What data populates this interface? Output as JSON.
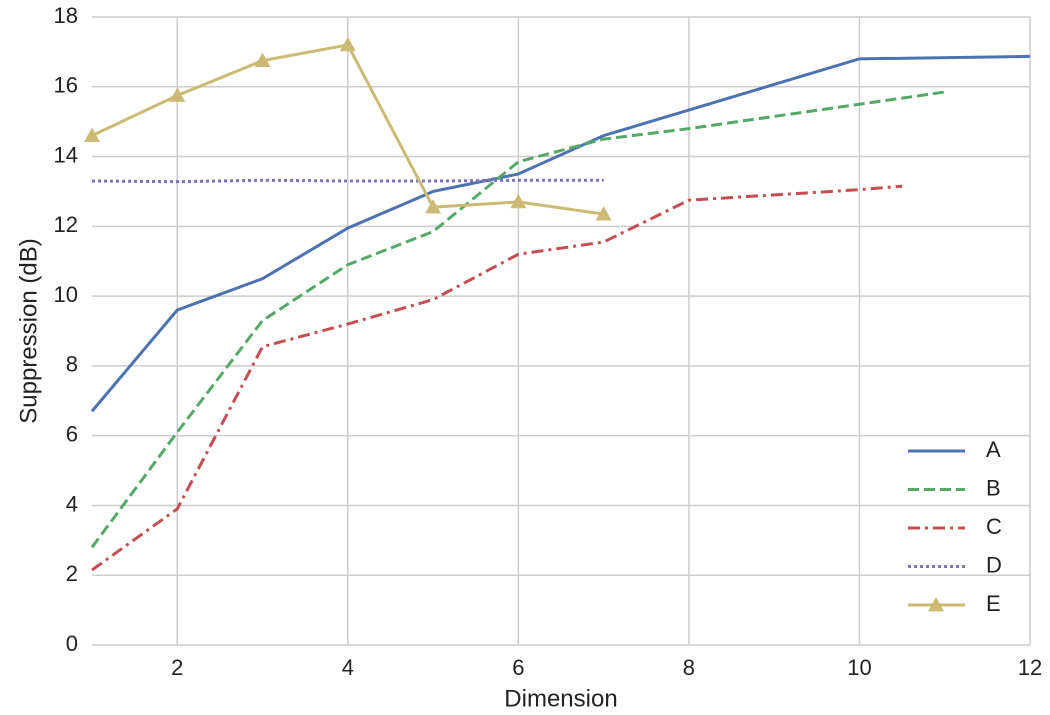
{
  "chart_data": {
    "type": "line",
    "xlabel": "Dimension",
    "ylabel": "Suppression (dB)",
    "xlim": [
      1,
      12
    ],
    "xticks": [
      2,
      4,
      6,
      8,
      10,
      12
    ],
    "ylim": [
      0,
      18
    ],
    "yticks": [
      0,
      2,
      4,
      6,
      8,
      10,
      12,
      14,
      16,
      18
    ],
    "grid": true,
    "legend": "lower right",
    "series": [
      {
        "name": "A",
        "color": "#4c72b0",
        "style": "solid",
        "x": [
          1,
          2,
          3,
          4,
          5,
          6,
          7,
          10,
          12
        ],
        "values": [
          6.7,
          9.6,
          10.5,
          11.95,
          13.0,
          13.5,
          14.6,
          16.8,
          16.87
        ]
      },
      {
        "name": "B",
        "color": "#55a868",
        "style": "dashed",
        "x": [
          1,
          2,
          3,
          4,
          5,
          6,
          7,
          8,
          10,
          11
        ],
        "values": [
          2.8,
          6.1,
          9.3,
          10.9,
          11.85,
          13.85,
          14.5,
          14.8,
          15.5,
          15.85
        ]
      },
      {
        "name": "C",
        "color": "#c44e52",
        "style": "dashdot",
        "x": [
          1,
          2,
          3,
          4,
          5,
          6,
          7,
          8,
          10,
          10.5
        ],
        "values": [
          2.15,
          3.9,
          8.55,
          9.2,
          9.9,
          11.2,
          11.55,
          12.75,
          13.05,
          13.15
        ]
      },
      {
        "name": "D",
        "color": "#8172b2",
        "style": "dotted",
        "x": [
          1,
          2,
          3,
          4,
          5,
          6,
          7
        ],
        "values": [
          13.3,
          13.28,
          13.32,
          13.3,
          13.3,
          13.32,
          13.32
        ]
      },
      {
        "name": "E",
        "color": "#ccb974",
        "style": "solid",
        "marker": "triangle",
        "x": [
          1,
          2,
          3,
          4,
          5,
          6,
          7
        ],
        "values": [
          14.6,
          15.75,
          16.75,
          17.2,
          12.55,
          12.7,
          12.35
        ]
      }
    ]
  }
}
